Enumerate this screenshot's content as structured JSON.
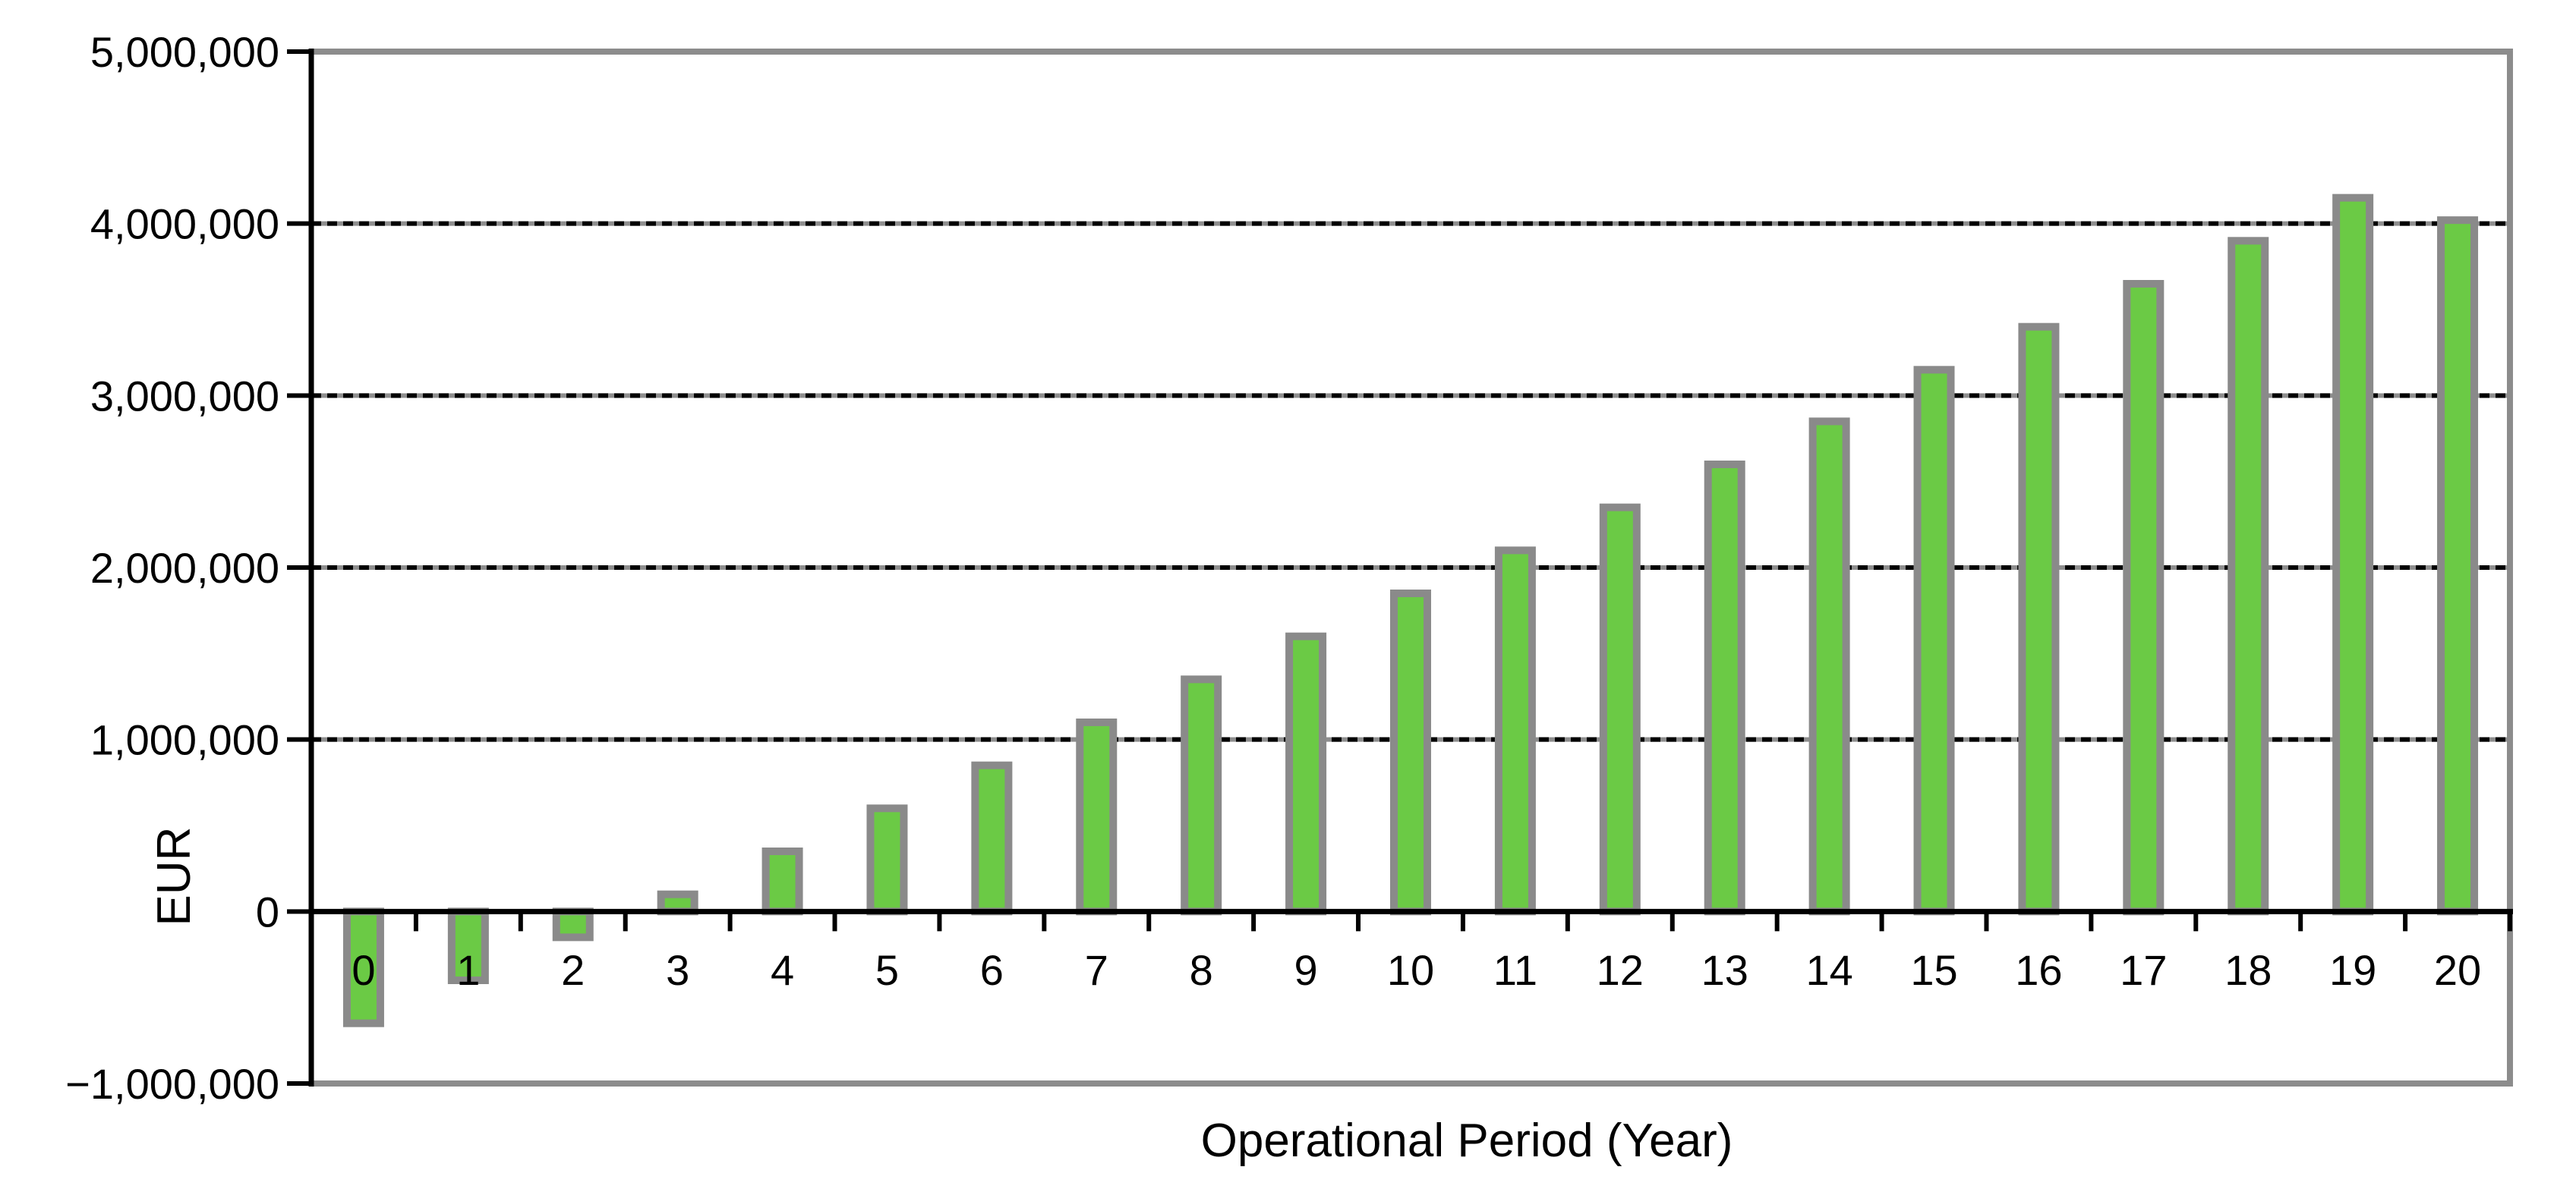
{
  "chart_data": {
    "type": "bar",
    "title": "",
    "xlabel": "Operational Period (Year)",
    "ylabel": "EUR",
    "categories": [
      "0",
      "1",
      "2",
      "3",
      "4",
      "5",
      "6",
      "7",
      "8",
      "9",
      "10",
      "11",
      "12",
      "13",
      "14",
      "15",
      "16",
      "17",
      "18",
      "19",
      "20"
    ],
    "values": [
      -650000,
      -400000,
      -150000,
      100000,
      350000,
      600000,
      850000,
      1100000,
      1350000,
      1600000,
      1850000,
      2100000,
      2350000,
      2600000,
      2850000,
      3150000,
      3400000,
      3650000,
      3900000,
      4150000,
      4020000
    ],
    "ylim": [
      -1000000,
      5000000
    ],
    "ytick_step": 1000000,
    "yticks": [
      {
        "value": 5000000,
        "label": "5,000,000"
      },
      {
        "value": 4000000,
        "label": "4,000,000"
      },
      {
        "value": 3000000,
        "label": "3,000,000"
      },
      {
        "value": 2000000,
        "label": "2,000,000"
      },
      {
        "value": 1000000,
        "label": "1,000,000"
      },
      {
        "value": 0,
        "label": "0"
      },
      {
        "value": -1000000,
        "label": "−1,000,000"
      }
    ],
    "grid": {
      "horizontal": "dashed",
      "vertical": "none"
    },
    "legend": {
      "visible": false
    },
    "colors": {
      "bar_fill": "#6BCA45",
      "bar_border": "#8A8A8A",
      "plot_frame": "#8C8C8C",
      "gridline_dash": "#000000",
      "gridline_base": "#8E8E8E",
      "axis": "#000000",
      "text": "#000000",
      "background": "#FFFFFF"
    }
  }
}
